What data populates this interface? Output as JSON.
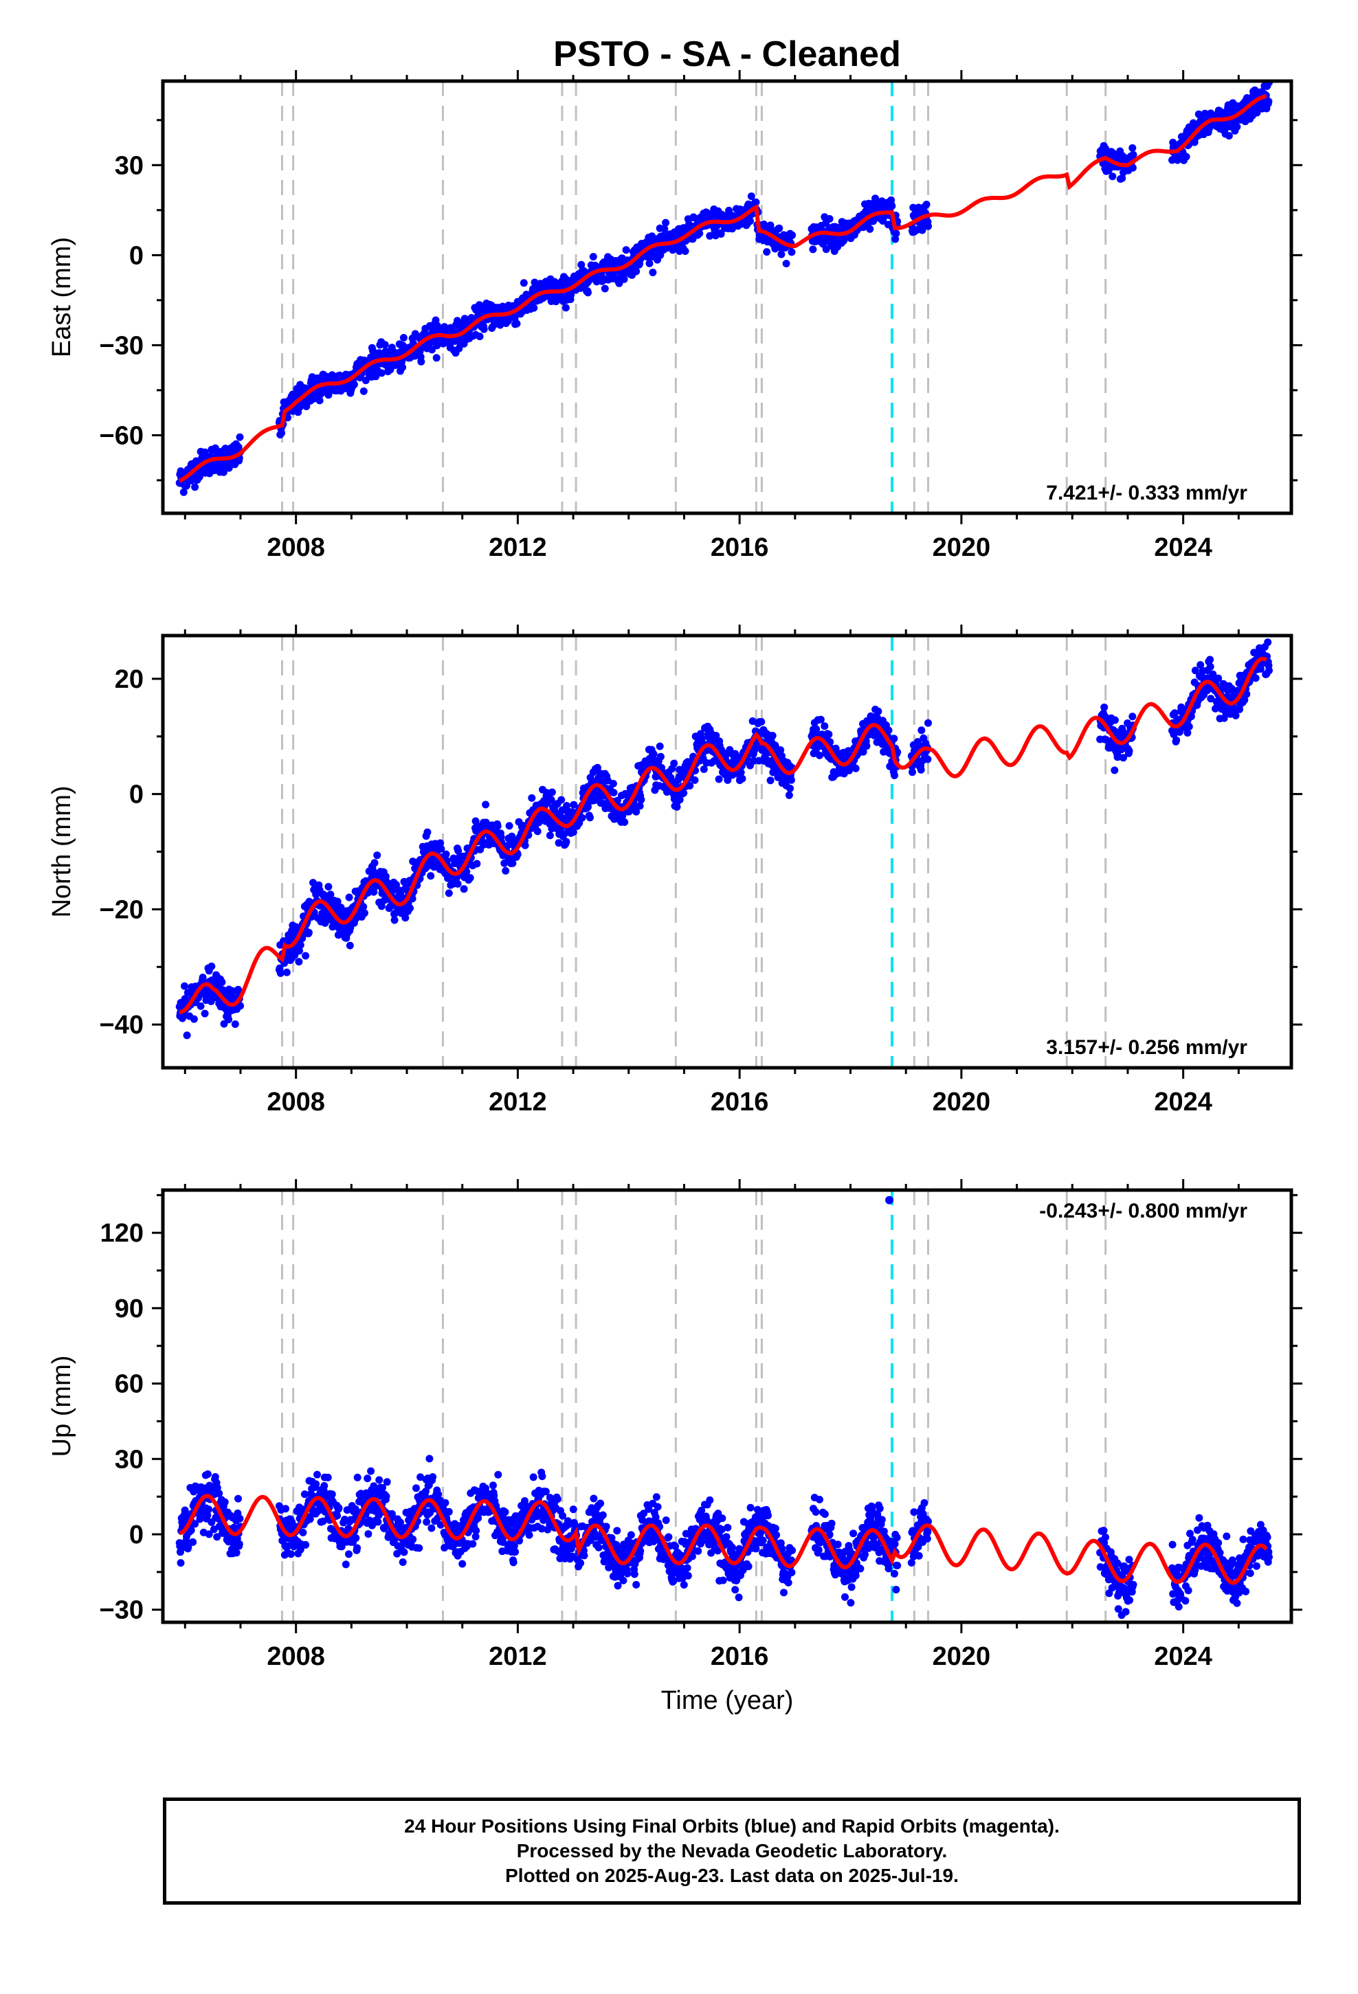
{
  "title": "PSTO  - SA - Cleaned",
  "x_axis_label": "Time (year)",
  "footer": {
    "line1": "24 Hour Positions Using Final Orbits (blue) and Rapid Orbits (magenta).",
    "line2": "Processed by the Nevada Geodetic Laboratory.",
    "line3": "Plotted on 2025-Aug-23. Last data on 2025-Jul-19."
  },
  "colors": {
    "data_points": "#0000ff",
    "model_line": "#ff0000",
    "event_lines": "#c0c0c0",
    "antenna_change_line": "#00e5ee",
    "frame": "#000000"
  },
  "chart_data": [
    {
      "type": "scatter",
      "component": "east",
      "ylabel": "East (mm)",
      "xlim": [
        2005.6,
        2025.95
      ],
      "ylim": [
        -86,
        58
      ],
      "xticks": [
        2008,
        2012,
        2016,
        2020,
        2024
      ],
      "yticks": [
        -60,
        -30,
        0,
        30
      ],
      "rate_text": "7.421+/- 0.333 mm/yr",
      "rate_mm_per_yr": 7.421,
      "rate_sigma_mm_per_yr": 0.333,
      "event_lines_years": [
        2007.75,
        2007.95,
        2010.65,
        2012.8,
        2013.05,
        2014.85,
        2016.3,
        2016.4,
        2019.15,
        2019.4,
        2021.9,
        2022.6
      ],
      "antenna_change_year": 2018.75,
      "model_trend": [
        [
          2005.9,
          -74
        ],
        [
          2006.5,
          -69
        ],
        [
          2007.0,
          -65
        ],
        [
          2007.75,
          -56
        ],
        [
          2007.8,
          -51
        ],
        [
          2008.0,
          -48
        ],
        [
          2009.0,
          -40
        ],
        [
          2010.0,
          -32
        ],
        [
          2010.6,
          -27
        ],
        [
          2011.0,
          -25
        ],
        [
          2012.0,
          -17
        ],
        [
          2012.8,
          -11
        ],
        [
          2013.5,
          -6
        ],
        [
          2014.0,
          -2
        ],
        [
          2015.0,
          7
        ],
        [
          2015.8,
          12
        ],
        [
          2016.3,
          15
        ],
        [
          2016.35,
          7
        ],
        [
          2017.0,
          4
        ],
        [
          2018.0,
          9
        ],
        [
          2018.75,
          15
        ],
        [
          2018.8,
          10
        ],
        [
          2019.4,
          12
        ],
        [
          2020.5,
          18
        ],
        [
          2021.9,
          28
        ],
        [
          2021.95,
          24
        ],
        [
          2022.6,
          32
        ],
        [
          2023.0,
          31
        ],
        [
          2023.9,
          36
        ],
        [
          2024.5,
          44
        ],
        [
          2025.5,
          52
        ]
      ],
      "observation_spans": [
        [
          2005.9,
          2007.0
        ],
        [
          2007.7,
          2016.95
        ],
        [
          2017.3,
          2018.85
        ],
        [
          2019.1,
          2019.4
        ],
        [
          2022.5,
          2023.1
        ],
        [
          2023.8,
          2025.55
        ]
      ]
    },
    {
      "type": "scatter",
      "component": "north",
      "ylabel": "North (mm)",
      "xlim": [
        2005.6,
        2025.95
      ],
      "ylim": [
        -47.5,
        27.5
      ],
      "xticks": [
        2008,
        2012,
        2016,
        2020,
        2024
      ],
      "yticks": [
        -40,
        -20,
        0,
        20
      ],
      "rate_text": "3.157+/- 0.256 mm/yr",
      "rate_mm_per_yr": 3.157,
      "rate_sigma_mm_per_yr": 0.256,
      "event_lines_years": [
        2007.75,
        2007.95,
        2010.65,
        2012.8,
        2013.05,
        2014.85,
        2016.3,
        2016.4,
        2019.15,
        2019.4,
        2021.9,
        2022.6
      ],
      "antenna_change_year": 2018.75,
      "model_trend": [
        [
          2005.9,
          -35
        ],
        [
          2006.5,
          -36
        ],
        [
          2007.0,
          -33
        ],
        [
          2007.75,
          -27
        ],
        [
          2007.8,
          -24
        ],
        [
          2009.0,
          -19
        ],
        [
          2010.0,
          -16
        ],
        [
          2010.6,
          -12
        ],
        [
          2011.5,
          -9
        ],
        [
          2012.5,
          -5
        ],
        [
          2012.8,
          -3
        ],
        [
          2013.5,
          -1
        ],
        [
          2014.5,
          2
        ],
        [
          2015.5,
          6
        ],
        [
          2016.3,
          8
        ],
        [
          2016.4,
          6
        ],
        [
          2017.5,
          7
        ],
        [
          2018.75,
          10
        ],
        [
          2018.8,
          8
        ],
        [
          2019.4,
          5
        ],
        [
          2020.5,
          7
        ],
        [
          2021.9,
          10
        ],
        [
          2021.95,
          9
        ],
        [
          2022.6,
          11
        ],
        [
          2023.5,
          13
        ],
        [
          2024.5,
          17
        ],
        [
          2025.5,
          21
        ]
      ],
      "observation_spans": [
        [
          2005.9,
          2007.0
        ],
        [
          2007.7,
          2016.95
        ],
        [
          2017.3,
          2018.85
        ],
        [
          2019.1,
          2019.4
        ],
        [
          2022.5,
          2023.1
        ],
        [
          2023.8,
          2025.55
        ]
      ]
    },
    {
      "type": "scatter",
      "component": "up",
      "ylabel": "Up (mm)",
      "xlim": [
        2005.6,
        2025.95
      ],
      "ylim": [
        -35,
        137
      ],
      "xticks": [
        2008,
        2012,
        2016,
        2020,
        2024
      ],
      "yticks": [
        -30,
        0,
        30,
        60,
        90,
        120
      ],
      "rate_text": "-0.243+/- 0.800 mm/yr",
      "rate_mm_per_yr": -0.243,
      "rate_sigma_mm_per_yr": 0.8,
      "event_lines_years": [
        2007.75,
        2007.95,
        2010.65,
        2012.8,
        2013.05,
        2014.85,
        2016.3,
        2016.4,
        2019.15,
        2019.4,
        2021.9,
        2022.6
      ],
      "antenna_change_year": 2018.75,
      "outlier": [
        2018.7,
        133
      ],
      "model_trend": [
        [
          2005.9,
          8
        ],
        [
          2013.05,
          5
        ],
        [
          2013.1,
          -4
        ],
        [
          2016.3,
          -4
        ],
        [
          2016.4,
          -5
        ],
        [
          2018.75,
          -6
        ],
        [
          2018.8,
          -1
        ],
        [
          2019.4,
          -4
        ],
        [
          2021.9,
          -8
        ],
        [
          2022.6,
          -11
        ],
        [
          2025.5,
          -12
        ]
      ],
      "observation_spans": [
        [
          2005.9,
          2007.0
        ],
        [
          2007.7,
          2016.95
        ],
        [
          2017.3,
          2018.85
        ],
        [
          2019.1,
          2019.4
        ],
        [
          2022.5,
          2023.1
        ],
        [
          2023.8,
          2025.55
        ]
      ]
    }
  ]
}
